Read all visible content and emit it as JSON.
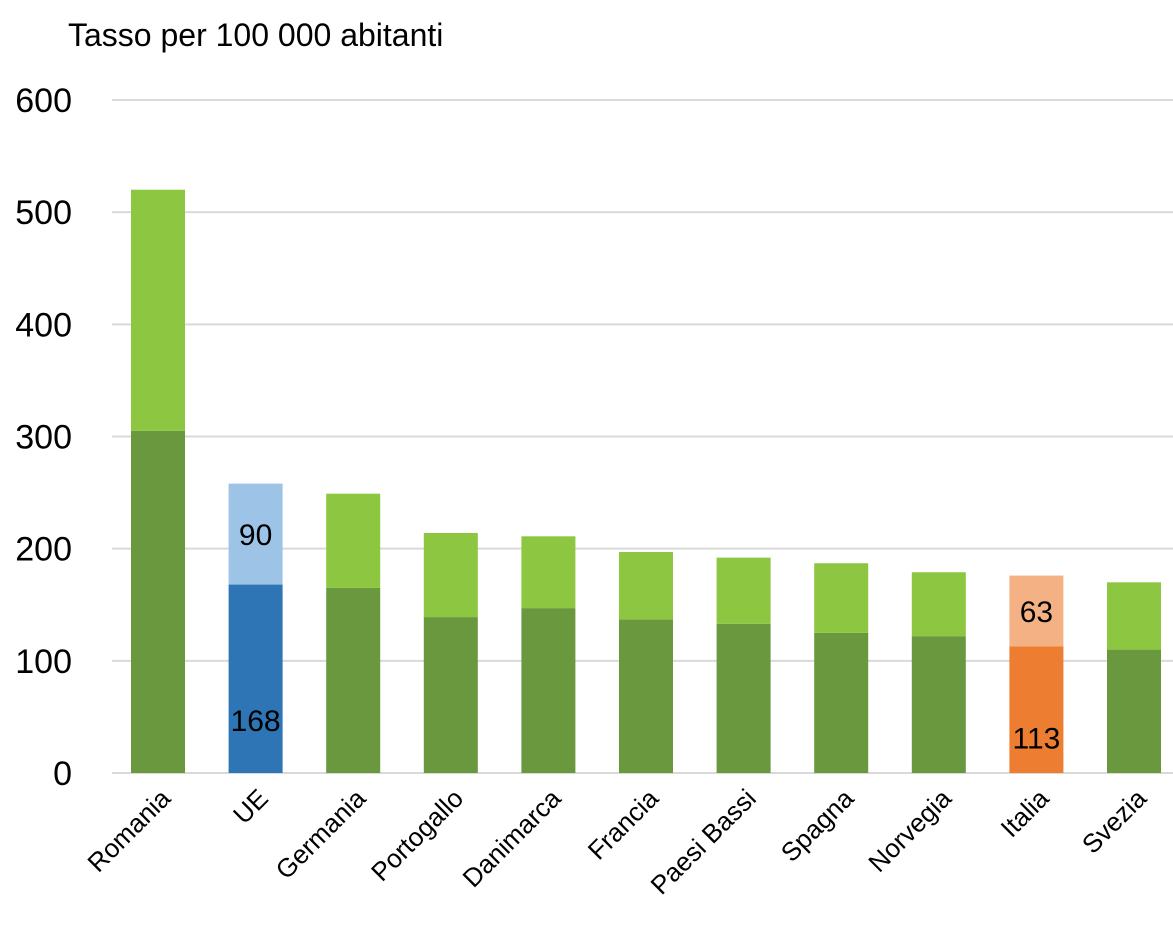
{
  "chart_data": {
    "type": "bar",
    "stacked": true,
    "title": "",
    "ylabel": "Tasso per 100 000 abitanti",
    "xlabel": "",
    "ylim": [
      0,
      600
    ],
    "yticks": [
      0,
      100,
      200,
      300,
      400,
      500,
      600
    ],
    "grid": true,
    "legend": "none",
    "categories": [
      "Romania",
      "UE",
      "Germania",
      "Portogallo",
      "Danimarca",
      "Francia",
      "Paesi Bassi",
      "Spagna",
      "Norvegia",
      "Italia",
      "Svezia"
    ],
    "series": [
      {
        "values": [
          305,
          168,
          165,
          139,
          147,
          137,
          133,
          125,
          122,
          113,
          110
        ]
      },
      {
        "values": [
          215,
          90,
          84,
          75,
          64,
          60,
          59,
          62,
          57,
          63,
          60
        ]
      }
    ],
    "colors": {
      "bottom_default": "#6a983f",
      "top_default": "#8dc641",
      "UE": {
        "bottom": "#2e75b6",
        "top": "#9dc3e6"
      },
      "Italia": {
        "bottom": "#ed7d31",
        "top": "#f4b183"
      }
    },
    "data_labels": [
      {
        "category": "UE",
        "series": 0,
        "text": "168"
      },
      {
        "category": "UE",
        "series": 1,
        "text": "90"
      },
      {
        "category": "Italia",
        "series": 0,
        "text": "113"
      },
      {
        "category": "Italia",
        "series": 1,
        "text": "63"
      }
    ]
  }
}
